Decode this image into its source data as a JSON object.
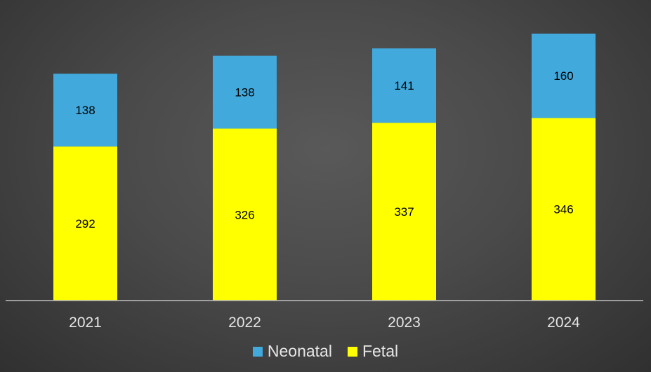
{
  "chart_data": {
    "type": "bar",
    "stacked": true,
    "categories": [
      "2021",
      "2022",
      "2023",
      "2024"
    ],
    "series": [
      {
        "name": "Fetal",
        "values": [
          292,
          326,
          337,
          346
        ],
        "color": "#ffff00"
      },
      {
        "name": "Neonatal",
        "values": [
          138,
          138,
          141,
          160
        ],
        "color": "#41a9dc"
      }
    ],
    "title": "",
    "xlabel": "",
    "ylabel": "",
    "ylim": [
      0,
      506
    ],
    "grid": false,
    "y_axis_visible": false,
    "legend_position": "bottom",
    "data_labels": true,
    "colors": {
      "background": "#484848",
      "axis_line": "#bfbfbf",
      "tick_label": "#e6e6e6",
      "data_label": "#000000"
    }
  }
}
